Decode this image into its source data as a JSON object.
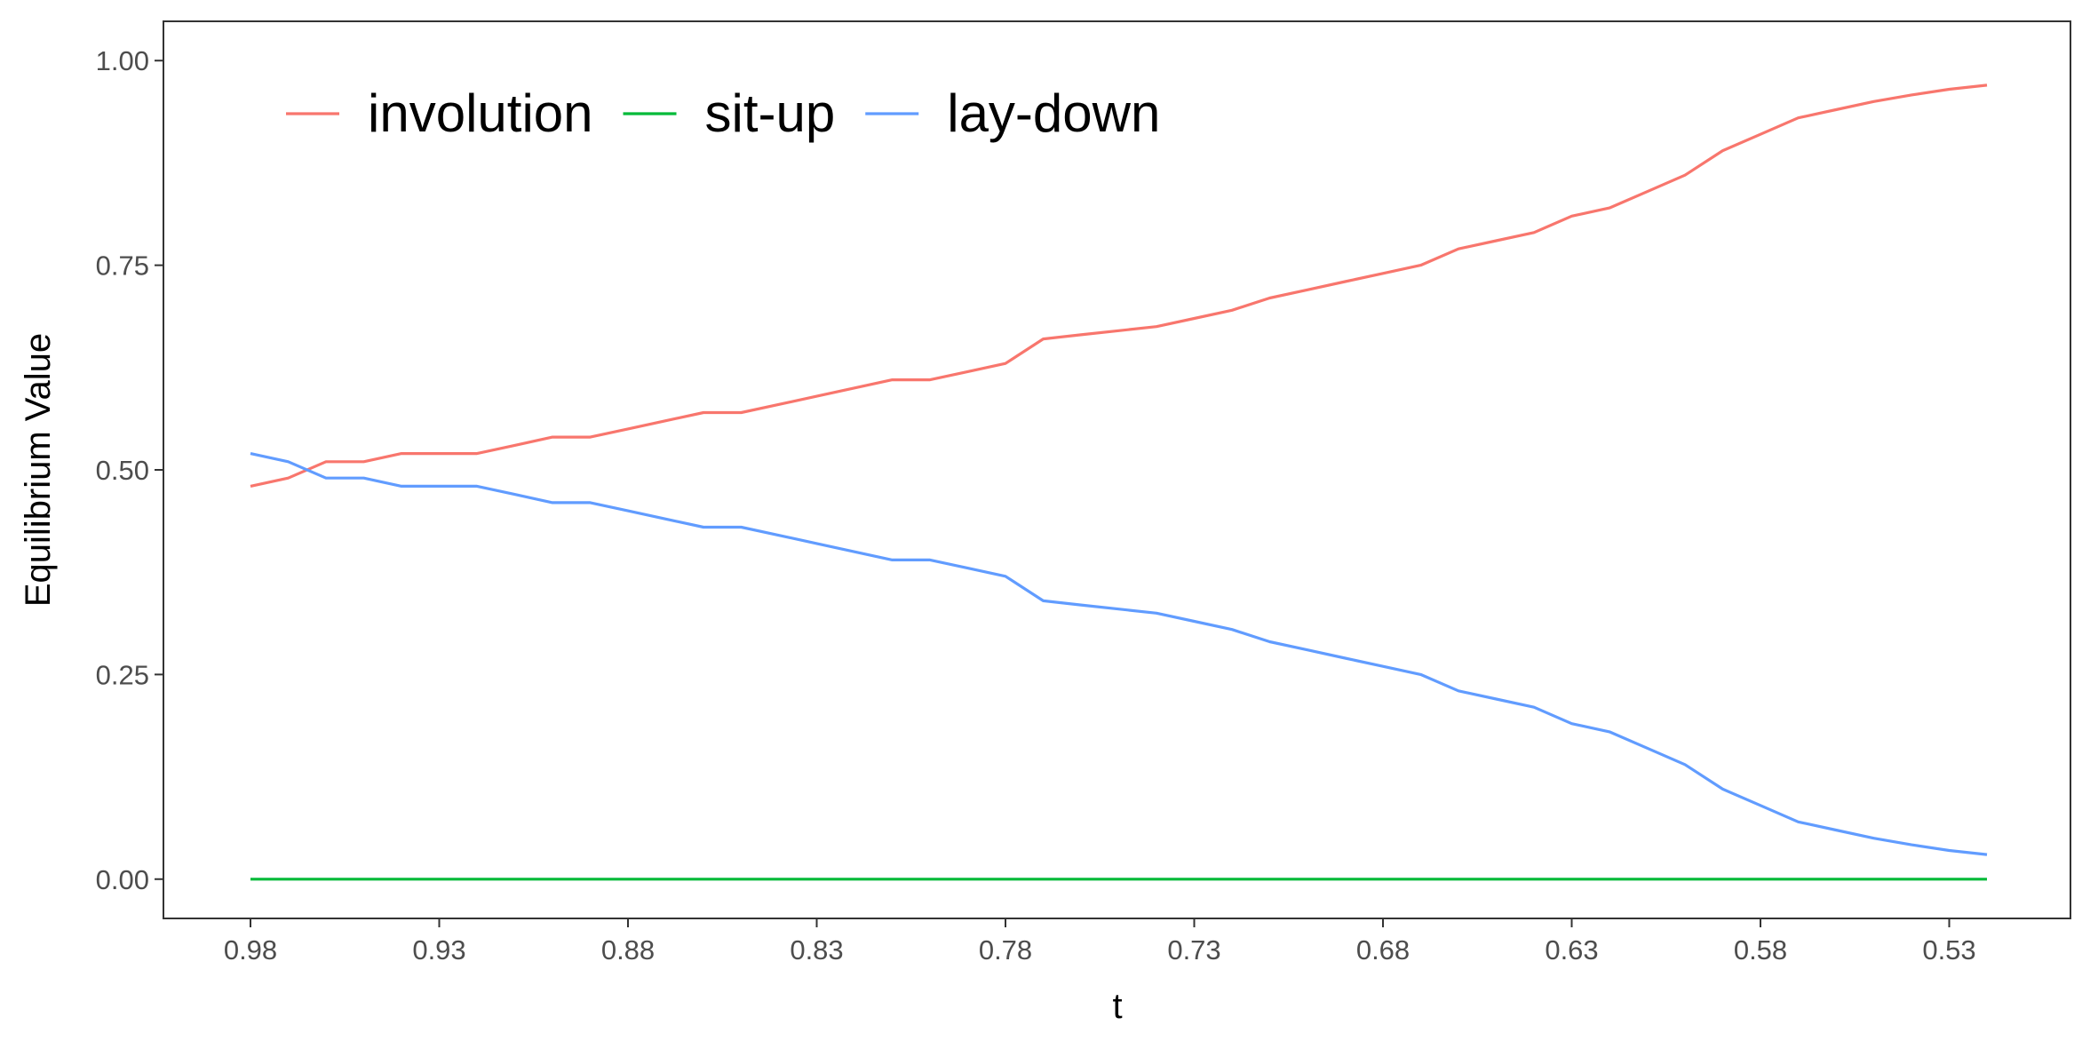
{
  "chart_data": {
    "type": "line",
    "title": "",
    "xlabel": "t",
    "ylabel": "Equilibrium Value",
    "x_reversed": true,
    "xlim": [
      0.98,
      0.52
    ],
    "ylim": [
      -0.048,
      1.048
    ],
    "x_ticks": [
      0.98,
      0.93,
      0.88,
      0.83,
      0.78,
      0.73,
      0.68,
      0.63,
      0.58,
      0.53
    ],
    "x_tick_labels": [
      "0.98",
      "0.93",
      "0.88",
      "0.83",
      "0.78",
      "0.73",
      "0.68",
      "0.63",
      "0.58",
      "0.53"
    ],
    "y_ticks": [
      0,
      0.25,
      0.5,
      0.75,
      1
    ],
    "y_tick_labels": [
      "0.00",
      "0.25",
      "0.50",
      "0.75",
      "1.00"
    ],
    "grid": false,
    "legend_position": "top-left",
    "x": [
      0.98,
      0.97,
      0.96,
      0.95,
      0.94,
      0.93,
      0.92,
      0.91,
      0.9,
      0.89,
      0.88,
      0.87,
      0.86,
      0.85,
      0.84,
      0.83,
      0.82,
      0.81,
      0.8,
      0.79,
      0.78,
      0.77,
      0.76,
      0.75,
      0.74,
      0.73,
      0.72,
      0.71,
      0.7,
      0.69,
      0.68,
      0.67,
      0.66,
      0.65,
      0.64,
      0.63,
      0.62,
      0.61,
      0.6,
      0.59,
      0.58,
      0.57,
      0.56,
      0.55,
      0.54,
      0.53,
      0.52
    ],
    "series": [
      {
        "name": "involution",
        "color": "#F8766D",
        "values": [
          0.48,
          0.49,
          0.51,
          0.51,
          0.52,
          0.52,
          0.52,
          0.53,
          0.54,
          0.54,
          0.55,
          0.56,
          0.57,
          0.57,
          0.58,
          0.59,
          0.6,
          0.61,
          0.61,
          0.62,
          0.63,
          0.66,
          0.665,
          0.67,
          0.675,
          0.685,
          0.695,
          0.71,
          0.72,
          0.73,
          0.74,
          0.75,
          0.77,
          0.78,
          0.79,
          0.81,
          0.82,
          0.84,
          0.86,
          0.89,
          0.91,
          0.93,
          0.94,
          0.95,
          0.958,
          0.965,
          0.97
        ]
      },
      {
        "name": "sit-up",
        "color": "#00BA38",
        "values": [
          0,
          0,
          0,
          0,
          0,
          0,
          0,
          0,
          0,
          0,
          0,
          0,
          0,
          0,
          0,
          0,
          0,
          0,
          0,
          0,
          0,
          0,
          0,
          0,
          0,
          0,
          0,
          0,
          0,
          0,
          0,
          0,
          0,
          0,
          0,
          0,
          0,
          0,
          0,
          0,
          0,
          0,
          0,
          0,
          0,
          0,
          0
        ]
      },
      {
        "name": "lay-down",
        "color": "#619CFF",
        "values": [
          0.52,
          0.51,
          0.49,
          0.49,
          0.48,
          0.48,
          0.48,
          0.47,
          0.46,
          0.46,
          0.45,
          0.44,
          0.43,
          0.43,
          0.42,
          0.41,
          0.4,
          0.39,
          0.39,
          0.38,
          0.37,
          0.34,
          0.335,
          0.33,
          0.325,
          0.315,
          0.305,
          0.29,
          0.28,
          0.27,
          0.26,
          0.25,
          0.23,
          0.22,
          0.21,
          0.19,
          0.18,
          0.16,
          0.14,
          0.11,
          0.09,
          0.07,
          0.06,
          0.05,
          0.042,
          0.035,
          0.03
        ]
      }
    ]
  }
}
